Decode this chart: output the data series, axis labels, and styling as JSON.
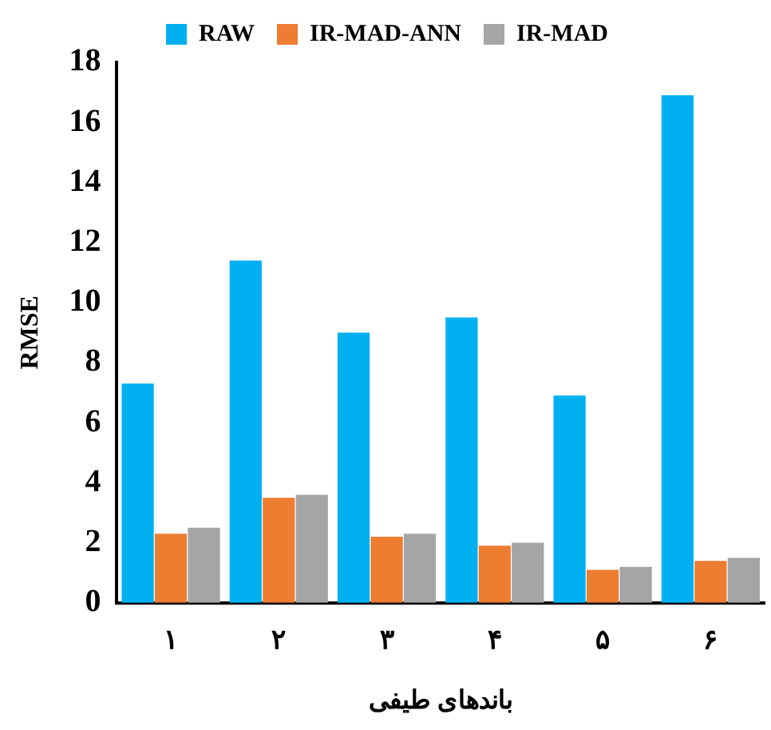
{
  "chart_data": {
    "type": "bar",
    "xlabel": "باندهای طیفی",
    "ylabel": "RMSE",
    "categories": [
      "۱",
      "۲",
      "۳",
      "۴",
      "۵",
      "۶"
    ],
    "series": [
      {
        "name": "RAW",
        "color": "#00b0f0",
        "values": [
          7.3,
          11.4,
          9.0,
          9.5,
          6.9,
          16.9
        ]
      },
      {
        "name": "IR-MAD-ANN",
        "color": "#ed7d31",
        "values": [
          2.3,
          3.5,
          2.2,
          1.9,
          1.1,
          1.4
        ]
      },
      {
        "name": "IR-MAD",
        "color": "#a5a5a5",
        "values": [
          2.5,
          3.6,
          2.3,
          2.0,
          1.2,
          1.5
        ]
      }
    ],
    "ylim": [
      0,
      18
    ],
    "yticks": [
      0,
      2,
      4,
      6,
      8,
      10,
      12,
      14,
      16,
      18
    ],
    "grid": false,
    "legend": "top"
  }
}
